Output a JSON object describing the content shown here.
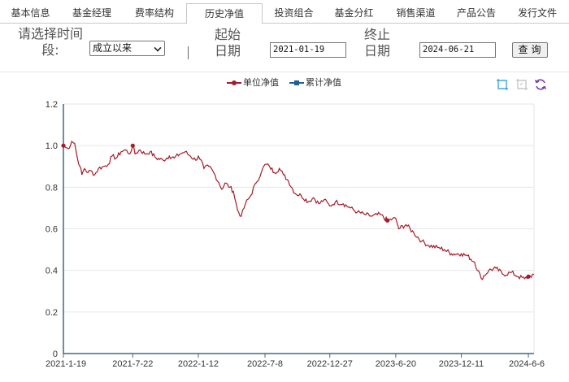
{
  "tabs": [
    {
      "label": "基本信息",
      "active": false
    },
    {
      "label": "基金经理",
      "active": false
    },
    {
      "label": "费率结构",
      "active": false
    },
    {
      "label": "历史净值",
      "active": true
    },
    {
      "label": "投资组合",
      "active": false
    },
    {
      "label": "基金分红",
      "active": false
    },
    {
      "label": "销售渠道",
      "active": false
    },
    {
      "label": "产品公告",
      "active": false
    },
    {
      "label": "发行文件",
      "active": false
    }
  ],
  "filter": {
    "period_label": "请选择时间段:",
    "period_value": "成立以来",
    "start_label": "起始日期",
    "start_value": "2021-01-19",
    "end_label": "终止日期",
    "end_value": "2024-06-21",
    "query_label": "查询"
  },
  "legend": {
    "unit_nav": "单位净值",
    "cum_nav": "累计净值"
  },
  "toolbar": {
    "icons": [
      "zoom-select-icon",
      "zoom-reset-icon",
      "refresh-icon"
    ]
  },
  "colors": {
    "unit_nav": "#a31c2a",
    "cum_nav": "#1e5f96",
    "axis": "#3b6a8c",
    "grid": "#e6e6e6"
  },
  "chart_data": {
    "type": "line",
    "title": "",
    "xlabel": "",
    "ylabel": "",
    "ylim": [
      0,
      1.2
    ],
    "yticks": [
      "0",
      "0.2",
      "0.4",
      "0.6",
      "0.8",
      "1.0",
      "1.2"
    ],
    "xticks": [
      "2021-1-19",
      "2021-7-22",
      "2022-1-12",
      "2022-7-8",
      "2022-12-27",
      "2023-6-20",
      "2023-12-11",
      "2024-6-6"
    ],
    "grid": true,
    "legend": "top-center",
    "series": [
      {
        "name": "单位净值",
        "points": [
          [
            "2021-01-19",
            1.0
          ],
          [
            "2021-01-26",
            0.99
          ],
          [
            "2021-02-01",
            0.985
          ],
          [
            "2021-02-10",
            1.02
          ],
          [
            "2021-02-18",
            1.01
          ],
          [
            "2021-02-25",
            0.94
          ],
          [
            "2021-03-04",
            0.9
          ],
          [
            "2021-03-09",
            0.86
          ],
          [
            "2021-03-16",
            0.89
          ],
          [
            "2021-03-25",
            0.87
          ],
          [
            "2021-04-01",
            0.88
          ],
          [
            "2021-04-12",
            0.86
          ],
          [
            "2021-04-22",
            0.89
          ],
          [
            "2021-05-06",
            0.9
          ],
          [
            "2021-05-18",
            0.91
          ],
          [
            "2021-05-28",
            0.95
          ],
          [
            "2021-06-08",
            0.94
          ],
          [
            "2021-06-21",
            0.97
          ],
          [
            "2021-07-02",
            0.98
          ],
          [
            "2021-07-14",
            0.96
          ],
          [
            "2021-07-22",
            1.0
          ],
          [
            "2021-07-28",
            0.96
          ],
          [
            "2021-08-10",
            0.98
          ],
          [
            "2021-08-23",
            0.96
          ],
          [
            "2021-09-06",
            0.97
          ],
          [
            "2021-09-22",
            0.94
          ],
          [
            "2021-10-11",
            0.93
          ],
          [
            "2021-10-27",
            0.95
          ],
          [
            "2021-11-09",
            0.94
          ],
          [
            "2021-11-24",
            0.96
          ],
          [
            "2021-12-08",
            0.97
          ],
          [
            "2021-12-22",
            0.95
          ],
          [
            "2022-01-05",
            0.93
          ],
          [
            "2022-01-12",
            0.95
          ],
          [
            "2022-01-20",
            0.93
          ],
          [
            "2022-01-27",
            0.89
          ],
          [
            "2022-02-09",
            0.9
          ],
          [
            "2022-02-22",
            0.87
          ],
          [
            "2022-03-08",
            0.82
          ],
          [
            "2022-03-15",
            0.79
          ],
          [
            "2022-03-24",
            0.82
          ],
          [
            "2022-04-06",
            0.8
          ],
          [
            "2022-04-15",
            0.78
          ],
          [
            "2022-04-26",
            0.69
          ],
          [
            "2022-05-06",
            0.66
          ],
          [
            "2022-05-17",
            0.72
          ],
          [
            "2022-05-31",
            0.76
          ],
          [
            "2022-06-14",
            0.82
          ],
          [
            "2022-06-28",
            0.87
          ],
          [
            "2022-07-08",
            0.91
          ],
          [
            "2022-07-20",
            0.9
          ],
          [
            "2022-08-02",
            0.87
          ],
          [
            "2022-08-15",
            0.89
          ],
          [
            "2022-08-26",
            0.86
          ],
          [
            "2022-09-08",
            0.83
          ],
          [
            "2022-09-26",
            0.77
          ],
          [
            "2022-10-12",
            0.76
          ],
          [
            "2022-10-31",
            0.73
          ],
          [
            "2022-11-14",
            0.75
          ],
          [
            "2022-11-28",
            0.72
          ],
          [
            "2022-12-12",
            0.74
          ],
          [
            "2022-12-27",
            0.71
          ],
          [
            "2023-01-11",
            0.73
          ],
          [
            "2023-02-01",
            0.72
          ],
          [
            "2023-02-20",
            0.7
          ],
          [
            "2023-03-10",
            0.68
          ],
          [
            "2023-03-29",
            0.67
          ],
          [
            "2023-04-18",
            0.66
          ],
          [
            "2023-05-09",
            0.67
          ],
          [
            "2023-05-29",
            0.64
          ],
          [
            "2023-06-20",
            0.65
          ],
          [
            "2023-06-28",
            0.6
          ],
          [
            "2023-07-17",
            0.62
          ],
          [
            "2023-08-07",
            0.58
          ],
          [
            "2023-08-28",
            0.54
          ],
          [
            "2023-09-15",
            0.52
          ],
          [
            "2023-10-09",
            0.51
          ],
          [
            "2023-10-27",
            0.5
          ],
          [
            "2023-11-15",
            0.48
          ],
          [
            "2023-12-11",
            0.48
          ],
          [
            "2023-12-27",
            0.47
          ],
          [
            "2024-01-15",
            0.44
          ],
          [
            "2024-02-02",
            0.36
          ],
          [
            "2024-02-22",
            0.4
          ],
          [
            "2024-03-12",
            0.41
          ],
          [
            "2024-04-01",
            0.38
          ],
          [
            "2024-04-22",
            0.39
          ],
          [
            "2024-05-10",
            0.37
          ],
          [
            "2024-05-27",
            0.36
          ],
          [
            "2024-06-06",
            0.37
          ],
          [
            "2024-06-21",
            0.38
          ]
        ]
      }
    ]
  }
}
